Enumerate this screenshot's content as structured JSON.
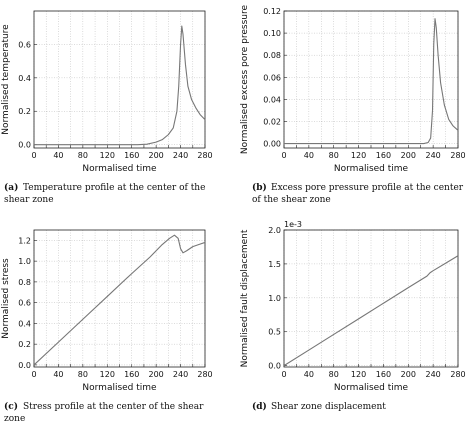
{
  "chart_data": [
    {
      "id": "a",
      "type": "line",
      "caption_label": "(a)",
      "caption_lines": [
        "Temperature profile at the center of the",
        "shear zone"
      ],
      "xlabel": "Normalised time",
      "ylabel": "Normalised temperature",
      "xlim": [
        0,
        280
      ],
      "ylim": [
        -0.02,
        0.8
      ],
      "xticks": [
        "0",
        "20",
        "40",
        "60",
        "80",
        "100",
        "120",
        "140",
        "160",
        "180",
        "200",
        "220",
        "240",
        "260",
        "280"
      ],
      "xticks_labeled": [
        "0",
        "40",
        "80",
        "120",
        "160",
        "200",
        "240",
        "280"
      ],
      "yticks": [
        "0.0",
        "0.2",
        "0.4",
        "0.6"
      ],
      "grid": true,
      "series": [
        {
          "color": "#777777",
          "x": [
            0,
            100,
            170,
            185,
            200,
            210,
            220,
            228,
            234,
            237,
            240,
            242,
            244,
            248,
            252,
            258,
            265,
            272,
            280
          ],
          "y": [
            0.0,
            0.0,
            0.0,
            0.003,
            0.015,
            0.03,
            0.06,
            0.1,
            0.2,
            0.35,
            0.6,
            0.71,
            0.66,
            0.48,
            0.35,
            0.27,
            0.22,
            0.18,
            0.15
          ]
        }
      ]
    },
    {
      "id": "b",
      "type": "line",
      "caption_label": "(b)",
      "caption_lines": [
        "Excess pore pressure profile at the center",
        "of the shear zone"
      ],
      "xlabel": "Normalised time",
      "ylabel": "Normalised excess pore pressure",
      "xlim": [
        0,
        280
      ],
      "ylim": [
        -0.004,
        0.12
      ],
      "xticks": [
        "0",
        "20",
        "40",
        "60",
        "80",
        "100",
        "120",
        "140",
        "160",
        "180",
        "200",
        "220",
        "240",
        "260",
        "280"
      ],
      "xticks_labeled": [
        "0",
        "40",
        "80",
        "120",
        "160",
        "200",
        "240",
        "280"
      ],
      "yticks": [
        "0.00",
        "0.02",
        "0.04",
        "0.06",
        "0.08",
        "0.10",
        "0.12"
      ],
      "grid": true,
      "series": [
        {
          "color": "#777777",
          "x": [
            0,
            200,
            225,
            232,
            236,
            239,
            241,
            243,
            245,
            248,
            252,
            258,
            265,
            272,
            280
          ],
          "y": [
            0.0,
            0.0,
            0.0,
            0.001,
            0.005,
            0.03,
            0.09,
            0.113,
            0.105,
            0.08,
            0.055,
            0.035,
            0.022,
            0.016,
            0.012
          ]
        }
      ]
    },
    {
      "id": "c",
      "type": "line",
      "caption_label": "(c)",
      "caption_lines": [
        "Stress profile at the center of the shear",
        "zone"
      ],
      "xlabel": "Normalised time",
      "ylabel": "Normalised stress",
      "xlim": [
        0,
        280
      ],
      "ylim": [
        -0.02,
        1.3
      ],
      "xticks": [
        "0",
        "20",
        "40",
        "60",
        "80",
        "100",
        "120",
        "140",
        "160",
        "180",
        "200",
        "220",
        "240",
        "260",
        "280"
      ],
      "xticks_labeled": [
        "0",
        "40",
        "80",
        "120",
        "160",
        "200",
        "240",
        "280"
      ],
      "yticks": [
        "0.0",
        "0.2",
        "0.4",
        "0.6",
        "0.8",
        "1.0",
        "1.2"
      ],
      "grid": true,
      "series": [
        {
          "color": "#777777",
          "x": [
            0,
            40,
            80,
            120,
            160,
            190,
            210,
            222,
            230,
            236,
            240,
            244,
            250,
            260,
            270,
            280
          ],
          "y": [
            0.0,
            0.22,
            0.44,
            0.66,
            0.88,
            1.04,
            1.16,
            1.22,
            1.25,
            1.22,
            1.12,
            1.08,
            1.1,
            1.14,
            1.16,
            1.18
          ]
        }
      ]
    },
    {
      "id": "d",
      "type": "line",
      "caption_label": "(d)",
      "caption_lines": [
        "Shear zone displacement"
      ],
      "xlabel": "Normalised time",
      "ylabel": "Normalised fault displacement",
      "offset_text": "1e-3",
      "xlim": [
        0,
        280
      ],
      "ylim": [
        -0.02,
        2.0
      ],
      "xticks": [
        "0",
        "20",
        "40",
        "60",
        "80",
        "100",
        "120",
        "140",
        "160",
        "180",
        "200",
        "220",
        "240",
        "260",
        "280"
      ],
      "xticks_labeled": [
        "0",
        "40",
        "80",
        "120",
        "160",
        "200",
        "240",
        "280"
      ],
      "yticks": [
        "0.0",
        "0.5",
        "1.0",
        "1.5",
        "2.0"
      ],
      "grid": true,
      "series": [
        {
          "color": "#777777",
          "x": [
            0,
            40,
            80,
            120,
            160,
            200,
            230,
            235,
            240,
            260,
            280
          ],
          "y": [
            0.0,
            0.23,
            0.46,
            0.69,
            0.92,
            1.15,
            1.32,
            1.37,
            1.4,
            1.51,
            1.62
          ]
        }
      ]
    }
  ]
}
